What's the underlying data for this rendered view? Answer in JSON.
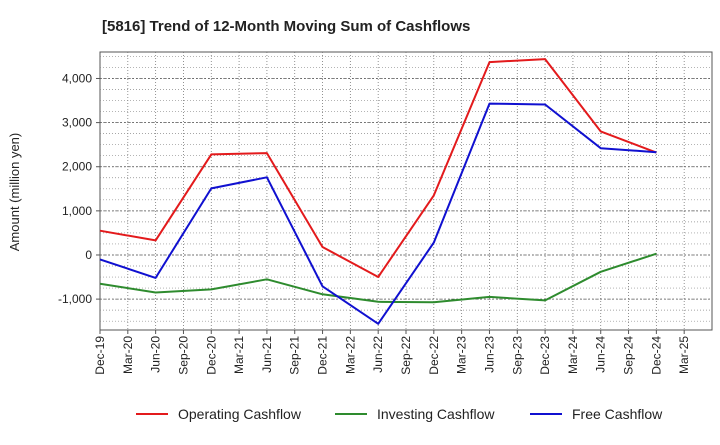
{
  "chart_data": {
    "type": "line",
    "title": "[5816]  Trend of 12-Month Moving Sum of Cashflows",
    "ylabel": "Amount (million yen)",
    "xlabel": "",
    "x": [
      "Dec-19",
      "Mar-20",
      "Jun-20",
      "Sep-20",
      "Dec-20",
      "Mar-21",
      "Jun-21",
      "Sep-21",
      "Dec-21",
      "Mar-22",
      "Jun-22",
      "Sep-22",
      "Dec-22",
      "Mar-23",
      "Jun-23",
      "Sep-23",
      "Dec-23",
      "Mar-24",
      "Jun-24",
      "Sep-24",
      "Dec-24",
      "Mar-25"
    ],
    "ylim": [
      -1700,
      4600
    ],
    "yticks": [
      -1000,
      0,
      1000,
      2000,
      3000,
      4000
    ],
    "ytick_labels": [
      "-1,000",
      "0",
      "1,000",
      "2,000",
      "3,000",
      "4,000"
    ],
    "grid": true,
    "legend_position": "bottom",
    "series": [
      {
        "name": "Operating Cashflow",
        "color": "#e31a1c",
        "points": [
          [
            "Dec-19",
            550
          ],
          [
            "Jun-20",
            330
          ],
          [
            "Dec-20",
            2280
          ],
          [
            "Jun-21",
            2310
          ],
          [
            "Dec-21",
            180
          ],
          [
            "Jun-22",
            -500
          ],
          [
            "Dec-22",
            1350
          ],
          [
            "Jun-23",
            4370
          ],
          [
            "Dec-23",
            4440
          ],
          [
            "Jun-24",
            2800
          ],
          [
            "Dec-24",
            2320
          ]
        ]
      },
      {
        "name": "Investing Cashflow",
        "color": "#2e8b2e",
        "points": [
          [
            "Dec-19",
            -650
          ],
          [
            "Jun-20",
            -850
          ],
          [
            "Dec-20",
            -780
          ],
          [
            "Jun-21",
            -550
          ],
          [
            "Dec-21",
            -890
          ],
          [
            "Jun-22",
            -1060
          ],
          [
            "Dec-22",
            -1070
          ],
          [
            "Jun-23",
            -950
          ],
          [
            "Dec-23",
            -1030
          ],
          [
            "Jun-24",
            -380
          ],
          [
            "Dec-24",
            30
          ]
        ]
      },
      {
        "name": "Free Cashflow",
        "color": "#1010d0",
        "points": [
          [
            "Dec-19",
            -100
          ],
          [
            "Jun-20",
            -520
          ],
          [
            "Dec-20",
            1510
          ],
          [
            "Jun-21",
            1760
          ],
          [
            "Dec-21",
            -710
          ],
          [
            "Jun-22",
            -1560
          ],
          [
            "Dec-22",
            280
          ],
          [
            "Jun-23",
            3430
          ],
          [
            "Dec-23",
            3410
          ],
          [
            "Jun-24",
            2420
          ],
          [
            "Dec-24",
            2330
          ]
        ]
      }
    ]
  }
}
